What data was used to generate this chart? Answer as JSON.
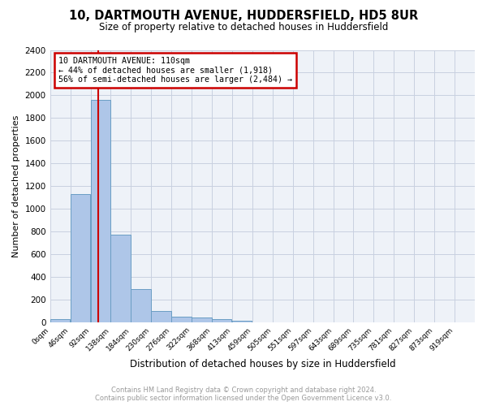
{
  "title": "10, DARTMOUTH AVENUE, HUDDERSFIELD, HD5 8UR",
  "subtitle": "Size of property relative to detached houses in Huddersfield",
  "xlabel": "Distribution of detached houses by size in Huddersfield",
  "ylabel": "Number of detached properties",
  "bin_labels": [
    "0sqm",
    "46sqm",
    "92sqm",
    "138sqm",
    "184sqm",
    "230sqm",
    "276sqm",
    "322sqm",
    "368sqm",
    "413sqm",
    "459sqm",
    "505sqm",
    "551sqm",
    "597sqm",
    "643sqm",
    "689sqm",
    "735sqm",
    "781sqm",
    "827sqm",
    "873sqm",
    "919sqm"
  ],
  "bar_values": [
    30,
    1130,
    1960,
    770,
    295,
    100,
    45,
    40,
    30,
    15,
    0,
    0,
    0,
    0,
    0,
    0,
    0,
    0,
    0,
    0,
    0
  ],
  "bar_color": "#aec6e8",
  "bar_edge_color": "#6a9ec4",
  "property_line_x": 110,
  "ylim": [
    0,
    2400
  ],
  "yticks": [
    0,
    200,
    400,
    600,
    800,
    1000,
    1200,
    1400,
    1600,
    1800,
    2000,
    2200,
    2400
  ],
  "annotation_box_text": "10 DARTMOUTH AVENUE: 110sqm\n← 44% of detached houses are smaller (1,918)\n56% of semi-detached houses are larger (2,484) →",
  "annotation_box_color": "#cc0000",
  "footer_line1": "Contains HM Land Registry data © Crown copyright and database right 2024.",
  "footer_line2": "Contains public sector information licensed under the Open Government Licence v3.0.",
  "plot_bg_color": "#eef2f8",
  "grid_color": "#c8d0e0",
  "bin_width": 46
}
